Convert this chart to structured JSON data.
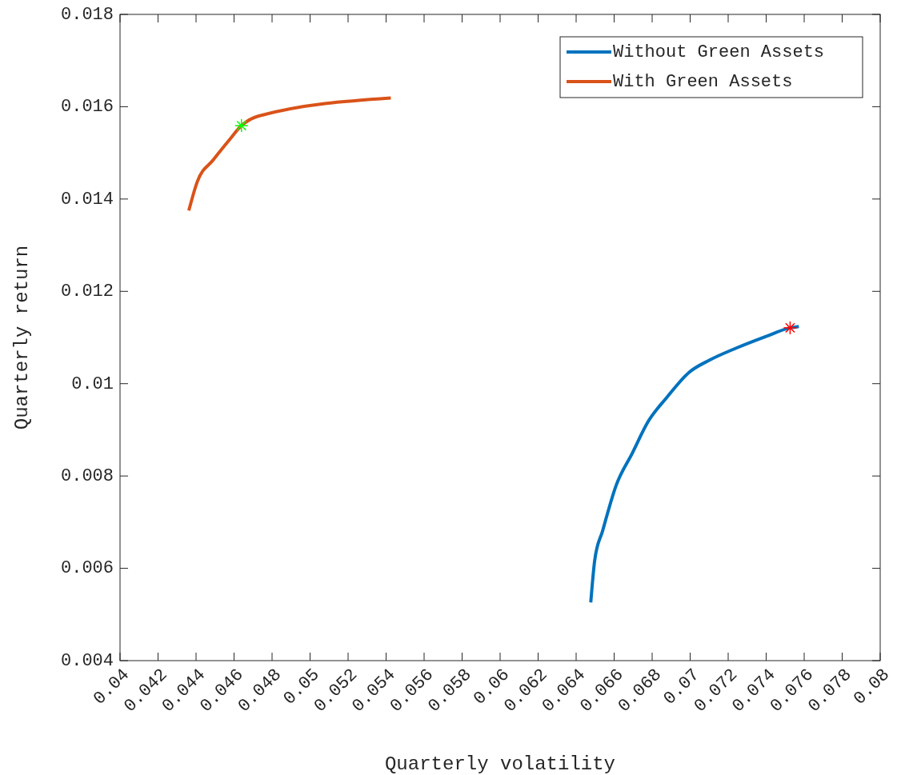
{
  "chart_data": {
    "type": "line",
    "xlabel": "Quarterly volatility",
    "ylabel": "Quarterly return",
    "xlim": [
      0.04,
      0.08
    ],
    "ylim": [
      0.004,
      0.018
    ],
    "xticks": [
      0.04,
      0.042,
      0.044,
      0.046,
      0.048,
      0.05,
      0.052,
      0.054,
      0.056,
      0.058,
      0.06,
      0.062,
      0.064,
      0.066,
      0.068,
      0.07,
      0.072,
      0.074,
      0.076,
      0.078,
      0.08
    ],
    "yticks": [
      0.004,
      0.006,
      0.008,
      0.01,
      0.012,
      0.014,
      0.016,
      0.018
    ],
    "grid": false,
    "legend": "top right",
    "line_style": "solid",
    "series": [
      {
        "name": "Without Green Assets",
        "color": "#0072bd",
        "x": [
          0.06477,
          0.06498,
          0.0654,
          0.06611,
          0.06695,
          0.06779,
          0.06877,
          0.06996,
          0.07102,
          0.07242,
          0.07397,
          0.07526,
          0.07572
        ],
        "values": [
          0.00526,
          0.00618,
          0.00682,
          0.0078,
          0.00849,
          0.00918,
          0.0097,
          0.01025,
          0.01051,
          0.01077,
          0.01102,
          0.01121,
          0.01124
        ]
      },
      {
        "name": "With Green Assets",
        "color": "#d95319",
        "x": [
          0.04362,
          0.04407,
          0.04491,
          0.04575,
          0.04639,
          0.0473,
          0.05425
        ],
        "values": [
          0.01375,
          0.01438,
          0.01485,
          0.01528,
          0.01559,
          0.0158,
          0.01619
        ]
      },
      {
        "type": "scatter",
        "marker": "cross",
        "color": "#00ff00",
        "x": [
          0.04639
        ],
        "values": [
          0.01559
        ]
      },
      {
        "type": "scatter",
        "marker": "cross",
        "color": "#ff0000",
        "x": [
          0.07526
        ],
        "values": [
          0.01121
        ]
      }
    ]
  }
}
